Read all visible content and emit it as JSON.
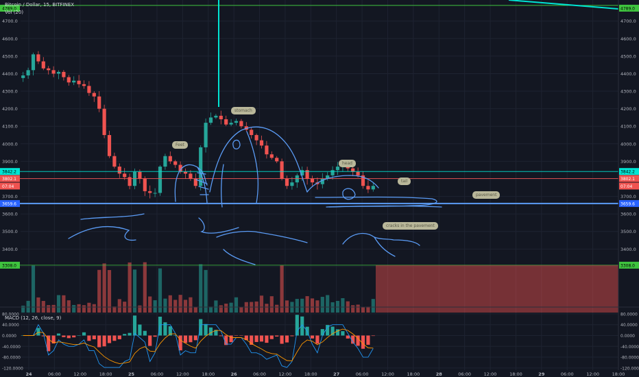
{
  "header": {
    "symbol_line": "Bitcoin / Dollar, 15, BITFINEX",
    "volume_line": "Vol (20)",
    "macd_line": "MACD (12, 26, close, 9)"
  },
  "annotations": {
    "feet": "Feet",
    "stomach": "stomach",
    "head": "head",
    "tail": "tail",
    "pavement": "pavement",
    "cracks": "cracks in the pavement"
  },
  "price_tags": {
    "top": "4789.0",
    "cyan": "3842.2",
    "red": "3802.1",
    "countdown": "07:04",
    "blue": "3659.6",
    "green": "3308.0"
  },
  "colors": {
    "background": "#131722",
    "up": "#26a69a",
    "down": "#ef5350",
    "cyan_line": "#00e5d4",
    "red_line": "#ef5350",
    "blue_line": "#2962ff",
    "green_line": "#3fc43f",
    "drawing": "#5b9cf6",
    "macd": "#2196f3",
    "signal": "#ff9800"
  },
  "chart_data": {
    "type": "candlestick",
    "title": "Bitcoin / Dollar, 15, BITFINEX",
    "price_axis": {
      "ylim": [
        3030,
        4820
      ],
      "ticks": [
        3300,
        3400,
        3500,
        3600,
        3700,
        3800,
        3900,
        4000,
        4100,
        4200,
        4300,
        4400,
        4500,
        4600,
        4700
      ]
    },
    "time_ticks": [
      "24",
      "06:00",
      "12:00",
      "18:00",
      "25",
      "06:00",
      "12:00",
      "18:00",
      "26",
      "06:00",
      "12:00",
      "18:00",
      "27",
      "06:00",
      "12:00",
      "18:00",
      "28",
      "06:00",
      "12:00",
      "18:00",
      "29",
      "06:00",
      "12:00",
      "18:00"
    ],
    "close_path": [
      4390,
      4420,
      4510,
      4470,
      4430,
      4420,
      4400,
      4410,
      4380,
      4350,
      4360,
      4340,
      4330,
      4290,
      4270,
      4200,
      4050,
      3930,
      3870,
      3830,
      3810,
      3760,
      3840,
      3800,
      3730,
      3720,
      3720,
      3870,
      3930,
      3900,
      3880,
      3840,
      3830,
      3800,
      3760,
      3980,
      4120,
      4150,
      4160,
      4140,
      4110,
      4120,
      4130,
      4100,
      4080,
      4050,
      4020,
      3990,
      3940,
      3920,
      3900,
      3800,
      3760,
      3780,
      3820,
      3850,
      3800,
      3780,
      3770,
      3800,
      3820,
      3850,
      3870,
      3880,
      3860,
      3840,
      3820,
      3760,
      3740,
      3760
    ],
    "horizontal_levels": {
      "top": 4789.0,
      "cyan": 3842.2,
      "red": 3802.1,
      "blue": 3659.6,
      "green": 3308.0
    },
    "macd_axis": {
      "ylim": [
        -128,
        95
      ],
      "ticks": [
        80,
        40,
        0,
        -40,
        -80,
        -120
      ],
      "tick_labels": [
        "80.0000",
        "40.0000",
        "0.0000",
        "-40.0000",
        "-80.0000",
        "-120.0000"
      ]
    }
  }
}
